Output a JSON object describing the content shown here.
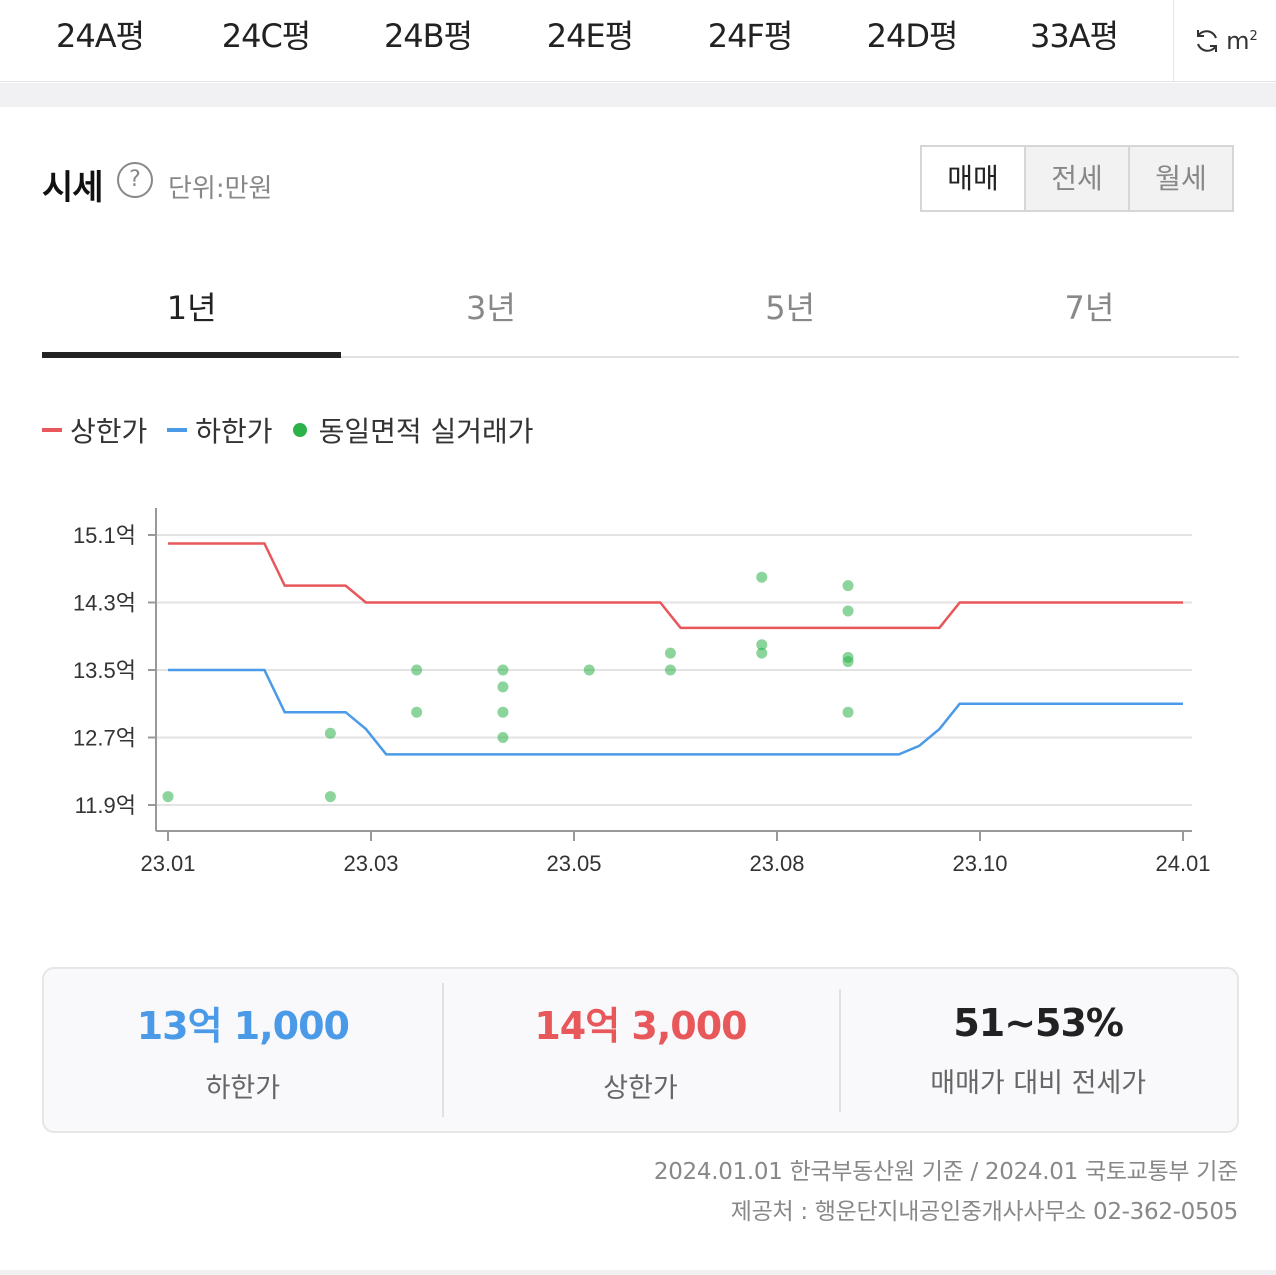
{
  "type_tabs": [
    {
      "label": "24A평",
      "active": true
    },
    {
      "label": "24C평",
      "active": false
    },
    {
      "label": "24B평",
      "active": false
    },
    {
      "label": "24E평",
      "active": false
    },
    {
      "label": "24F평",
      "active": false
    },
    {
      "label": "24D평",
      "active": false
    },
    {
      "label": "33A평",
      "active": false
    }
  ],
  "unit_toggle": {
    "icon": "refresh-icon",
    "label": "m",
    "sup": "2"
  },
  "section": {
    "title": "시세",
    "help": "?",
    "unit": "단위:만원"
  },
  "deal_types": [
    {
      "label": "매매",
      "active": true
    },
    {
      "label": "전세",
      "active": false
    },
    {
      "label": "월세",
      "active": false
    }
  ],
  "periods": [
    {
      "label": "1년",
      "active": true
    },
    {
      "label": "3년",
      "active": false
    },
    {
      "label": "5년",
      "active": false
    },
    {
      "label": "7년",
      "active": false
    }
  ],
  "legend": [
    {
      "label": "상한가",
      "color": "#e8575a",
      "kind": "line"
    },
    {
      "label": "하한가",
      "color": "#4a9ae8",
      "kind": "line"
    },
    {
      "label": "동일면적 실거래가",
      "color": "#2bb34a",
      "kind": "dot"
    }
  ],
  "chart_data": {
    "type": "line",
    "x_ticks": [
      "23.01",
      "23.03",
      "23.05",
      "23.08",
      "23.10",
      "24.01"
    ],
    "y_ticks": [
      "15.1억",
      "14.3억",
      "13.5억",
      "12.7억",
      "11.9억"
    ],
    "ylim": [
      11.9,
      15.1
    ],
    "grid": true,
    "colors": {
      "upper": "#e8575a",
      "lower": "#4a9ae8",
      "trade": "#2bb34a"
    },
    "series": [
      {
        "name": "상한가",
        "points": [
          [
            0,
            15.0
          ],
          [
            0.95,
            15.0
          ],
          [
            1.15,
            14.5
          ],
          [
            1.75,
            14.5
          ],
          [
            1.95,
            14.3
          ],
          [
            4.85,
            14.3
          ],
          [
            5.05,
            14.0
          ],
          [
            7.6,
            14.0
          ],
          [
            7.8,
            14.3
          ],
          [
            10,
            14.3
          ]
        ]
      },
      {
        "name": "하한가",
        "points": [
          [
            0,
            13.5
          ],
          [
            0.95,
            13.5
          ],
          [
            1.15,
            13.0
          ],
          [
            1.75,
            13.0
          ],
          [
            1.95,
            12.8
          ],
          [
            2.15,
            12.5
          ],
          [
            7.2,
            12.5
          ],
          [
            7.4,
            12.6
          ],
          [
            7.6,
            12.8
          ],
          [
            7.8,
            13.1
          ],
          [
            10,
            13.1
          ]
        ]
      }
    ],
    "scatter": [
      [
        0,
        12.0
      ],
      [
        1.6,
        12.75
      ],
      [
        1.6,
        12.0
      ],
      [
        2.45,
        13.5
      ],
      [
        2.45,
        13.0
      ],
      [
        3.3,
        13.5
      ],
      [
        3.3,
        13.3
      ],
      [
        3.3,
        13.0
      ],
      [
        3.3,
        12.7
      ],
      [
        4.15,
        13.5
      ],
      [
        4.95,
        13.7
      ],
      [
        4.95,
        13.5
      ],
      [
        5.85,
        14.6
      ],
      [
        5.85,
        13.8
      ],
      [
        5.85,
        13.7
      ],
      [
        6.7,
        14.5
      ],
      [
        6.7,
        14.2
      ],
      [
        6.7,
        13.65
      ],
      [
        6.7,
        13.6
      ],
      [
        6.7,
        13.0
      ]
    ]
  },
  "summary": [
    {
      "value": "13억 1,000",
      "label": "하한가",
      "color": "#4a9ae8"
    },
    {
      "value": "14억 3,000",
      "label": "상한가",
      "color": "#e8575a"
    },
    {
      "value": "51~53%",
      "label": "매매가 대비 전세가",
      "color": "#222222"
    }
  ],
  "footnotes": [
    "2024.01.01 한국부동산원 기준 / 2024.01 국토교통부 기준",
    "제공처 : 행운단지내공인중개사사무소 02-362-0505"
  ]
}
